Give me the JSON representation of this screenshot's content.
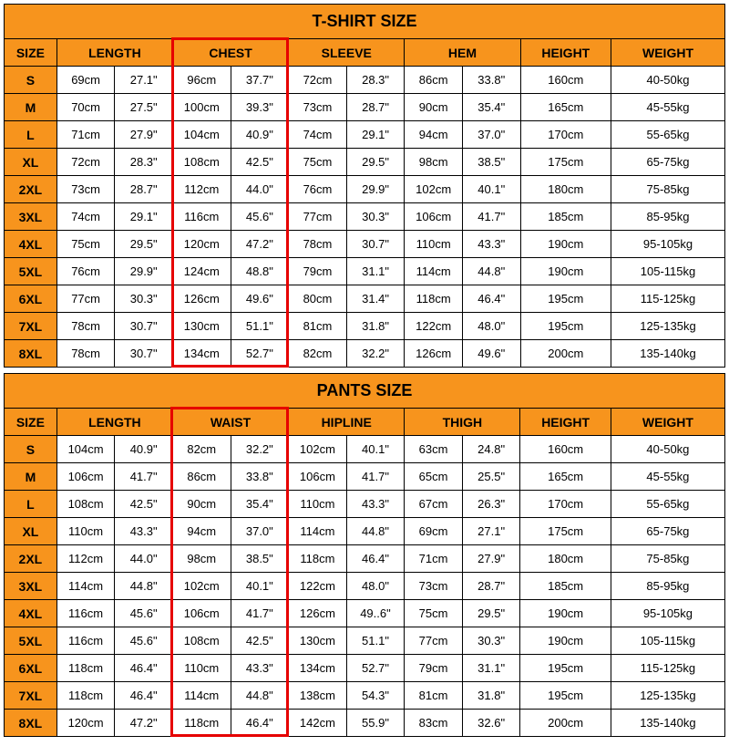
{
  "colors": {
    "header_bg": "#f7941d",
    "border": "#000000",
    "highlight_border": "#e60000",
    "background": "#ffffff",
    "text": "#000000"
  },
  "tshirt": {
    "title": "T-SHIRT SIZE",
    "headers": {
      "size": "SIZE",
      "length": "LENGTH",
      "chest": "CHEST",
      "sleeve": "SLEEVE",
      "hem": "HEM",
      "height": "HEIGHT",
      "weight": "WEIGHT"
    },
    "highlight_column": "chest",
    "rows": [
      {
        "size": "S",
        "length_cm": "69cm",
        "length_in": "27.1\"",
        "chest_cm": "96cm",
        "chest_in": "37.7\"",
        "sleeve_cm": "72cm",
        "sleeve_in": "28.3\"",
        "hem_cm": "86cm",
        "hem_in": "33.8\"",
        "height": "160cm",
        "weight": "40-50kg"
      },
      {
        "size": "M",
        "length_cm": "70cm",
        "length_in": "27.5\"",
        "chest_cm": "100cm",
        "chest_in": "39.3\"",
        "sleeve_cm": "73cm",
        "sleeve_in": "28.7\"",
        "hem_cm": "90cm",
        "hem_in": "35.4\"",
        "height": "165cm",
        "weight": "45-55kg"
      },
      {
        "size": "L",
        "length_cm": "71cm",
        "length_in": "27.9\"",
        "chest_cm": "104cm",
        "chest_in": "40.9\"",
        "sleeve_cm": "74cm",
        "sleeve_in": "29.1\"",
        "hem_cm": "94cm",
        "hem_in": "37.0\"",
        "height": "170cm",
        "weight": "55-65kg"
      },
      {
        "size": "XL",
        "length_cm": "72cm",
        "length_in": "28.3\"",
        "chest_cm": "108cm",
        "chest_in": "42.5\"",
        "sleeve_cm": "75cm",
        "sleeve_in": "29.5\"",
        "hem_cm": "98cm",
        "hem_in": "38.5\"",
        "height": "175cm",
        "weight": "65-75kg"
      },
      {
        "size": "2XL",
        "length_cm": "73cm",
        "length_in": "28.7\"",
        "chest_cm": "112cm",
        "chest_in": "44.0\"",
        "sleeve_cm": "76cm",
        "sleeve_in": "29.9\"",
        "hem_cm": "102cm",
        "hem_in": "40.1\"",
        "height": "180cm",
        "weight": "75-85kg"
      },
      {
        "size": "3XL",
        "length_cm": "74cm",
        "length_in": "29.1\"",
        "chest_cm": "116cm",
        "chest_in": "45.6\"",
        "sleeve_cm": "77cm",
        "sleeve_in": "30.3\"",
        "hem_cm": "106cm",
        "hem_in": "41.7\"",
        "height": "185cm",
        "weight": "85-95kg"
      },
      {
        "size": "4XL",
        "length_cm": "75cm",
        "length_in": "29.5\"",
        "chest_cm": "120cm",
        "chest_in": "47.2\"",
        "sleeve_cm": "78cm",
        "sleeve_in": "30.7\"",
        "hem_cm": "110cm",
        "hem_in": "43.3\"",
        "height": "190cm",
        "weight": "95-105kg"
      },
      {
        "size": "5XL",
        "length_cm": "76cm",
        "length_in": "29.9\"",
        "chest_cm": "124cm",
        "chest_in": "48.8\"",
        "sleeve_cm": "79cm",
        "sleeve_in": "31.1\"",
        "hem_cm": "114cm",
        "hem_in": "44.8\"",
        "height": "190cm",
        "weight": "105-115kg"
      },
      {
        "size": "6XL",
        "length_cm": "77cm",
        "length_in": "30.3\"",
        "chest_cm": "126cm",
        "chest_in": "49.6\"",
        "sleeve_cm": "80cm",
        "sleeve_in": "31.4\"",
        "hem_cm": "118cm",
        "hem_in": "46.4\"",
        "height": "195cm",
        "weight": "115-125kg"
      },
      {
        "size": "7XL",
        "length_cm": "78cm",
        "length_in": "30.7\"",
        "chest_cm": "130cm",
        "chest_in": "51.1\"",
        "sleeve_cm": "81cm",
        "sleeve_in": "31.8\"",
        "hem_cm": "122cm",
        "hem_in": "48.0\"",
        "height": "195cm",
        "weight": "125-135kg"
      },
      {
        "size": "8XL",
        "length_cm": "78cm",
        "length_in": "30.7\"",
        "chest_cm": "134cm",
        "chest_in": "52.7\"",
        "sleeve_cm": "82cm",
        "sleeve_in": "32.2\"",
        "hem_cm": "126cm",
        "hem_in": "49.6\"",
        "height": "200cm",
        "weight": "135-140kg"
      }
    ]
  },
  "pants": {
    "title": "PANTS SIZE",
    "headers": {
      "size": "SIZE",
      "length": "LENGTH",
      "waist": "WAIST",
      "hipline": "HIPLINE",
      "thigh": "THIGH",
      "height": "HEIGHT",
      "weight": "WEIGHT"
    },
    "highlight_column": "waist",
    "rows": [
      {
        "size": "S",
        "length_cm": "104cm",
        "length_in": "40.9\"",
        "waist_cm": "82cm",
        "waist_in": "32.2\"",
        "hip_cm": "102cm",
        "hip_in": "40.1\"",
        "thigh_cm": "63cm",
        "thigh_in": "24.8\"",
        "height": "160cm",
        "weight": "40-50kg"
      },
      {
        "size": "M",
        "length_cm": "106cm",
        "length_in": "41.7\"",
        "waist_cm": "86cm",
        "waist_in": "33.8\"",
        "hip_cm": "106cm",
        "hip_in": "41.7\"",
        "thigh_cm": "65cm",
        "thigh_in": "25.5\"",
        "height": "165cm",
        "weight": "45-55kg"
      },
      {
        "size": "L",
        "length_cm": "108cm",
        "length_in": "42.5\"",
        "waist_cm": "90cm",
        "waist_in": "35.4\"",
        "hip_cm": "110cm",
        "hip_in": "43.3\"",
        "thigh_cm": "67cm",
        "thigh_in": "26.3\"",
        "height": "170cm",
        "weight": "55-65kg"
      },
      {
        "size": "XL",
        "length_cm": "110cm",
        "length_in": "43.3\"",
        "waist_cm": "94cm",
        "waist_in": "37.0\"",
        "hip_cm": "114cm",
        "hip_in": "44.8\"",
        "thigh_cm": "69cm",
        "thigh_in": "27.1\"",
        "height": "175cm",
        "weight": "65-75kg"
      },
      {
        "size": "2XL",
        "length_cm": "112cm",
        "length_in": "44.0\"",
        "waist_cm": "98cm",
        "waist_in": "38.5\"",
        "hip_cm": "118cm",
        "hip_in": "46.4\"",
        "thigh_cm": "71cm",
        "thigh_in": "27.9\"",
        "height": "180cm",
        "weight": "75-85kg"
      },
      {
        "size": "3XL",
        "length_cm": "114cm",
        "length_in": "44.8\"",
        "waist_cm": "102cm",
        "waist_in": "40.1\"",
        "hip_cm": "122cm",
        "hip_in": "48.0\"",
        "thigh_cm": "73cm",
        "thigh_in": "28.7\"",
        "height": "185cm",
        "weight": "85-95kg"
      },
      {
        "size": "4XL",
        "length_cm": "116cm",
        "length_in": "45.6\"",
        "waist_cm": "106cm",
        "waist_in": "41.7\"",
        "hip_cm": "126cm",
        "hip_in": "49..6\"",
        "thigh_cm": "75cm",
        "thigh_in": "29.5\"",
        "height": "190cm",
        "weight": "95-105kg"
      },
      {
        "size": "5XL",
        "length_cm": "116cm",
        "length_in": "45.6\"",
        "waist_cm": "108cm",
        "waist_in": "42.5\"",
        "hip_cm": "130cm",
        "hip_in": "51.1\"",
        "thigh_cm": "77cm",
        "thigh_in": "30.3\"",
        "height": "190cm",
        "weight": "105-115kg"
      },
      {
        "size": "6XL",
        "length_cm": "118cm",
        "length_in": "46.4\"",
        "waist_cm": "110cm",
        "waist_in": "43.3\"",
        "hip_cm": "134cm",
        "hip_in": "52.7\"",
        "thigh_cm": "79cm",
        "thigh_in": "31.1\"",
        "height": "195cm",
        "weight": "115-125kg"
      },
      {
        "size": "7XL",
        "length_cm": "118cm",
        "length_in": "46.4\"",
        "waist_cm": "114cm",
        "waist_in": "44.8\"",
        "hip_cm": "138cm",
        "hip_in": "54.3\"",
        "thigh_cm": "81cm",
        "thigh_in": "31.8\"",
        "height": "195cm",
        "weight": "125-135kg"
      },
      {
        "size": "8XL",
        "length_cm": "120cm",
        "length_in": "47.2\"",
        "waist_cm": "118cm",
        "waist_in": "46.4\"",
        "hip_cm": "142cm",
        "hip_in": "55.9\"",
        "thigh_cm": "83cm",
        "thigh_in": "32.6\"",
        "height": "200cm",
        "weight": "135-140kg"
      }
    ]
  }
}
